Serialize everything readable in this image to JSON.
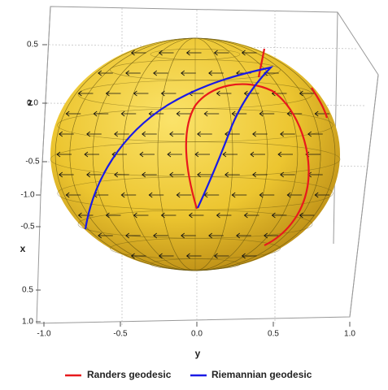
{
  "chart_data": {
    "type": "surface3d",
    "xlabel": "x",
    "ylabel": "y",
    "zlabel": "z",
    "xlim": [
      -1,
      1
    ],
    "ylim": [
      -1,
      1
    ],
    "zlim": [
      -0.7,
      0.7
    ],
    "xticks": [
      {
        "value": -1,
        "label": "-1.0"
      },
      -0.5,
      0.5,
      {
        "value": 1,
        "label": "1.0"
      }
    ],
    "yticks": [
      {
        "value": -1,
        "label": "-1.0"
      },
      -0.5,
      {
        "value": 0,
        "label": "0.0"
      },
      0.5,
      {
        "value": 1,
        "label": "1.0"
      }
    ],
    "zticks": [
      0.5,
      {
        "value": 0,
        "label": "0.0"
      },
      -0.5
    ],
    "series": [
      {
        "name": "Randers geodesic",
        "color": "#e8191c"
      },
      {
        "name": "Riemannian geodesic",
        "color": "#1a1ae6"
      }
    ]
  }
}
